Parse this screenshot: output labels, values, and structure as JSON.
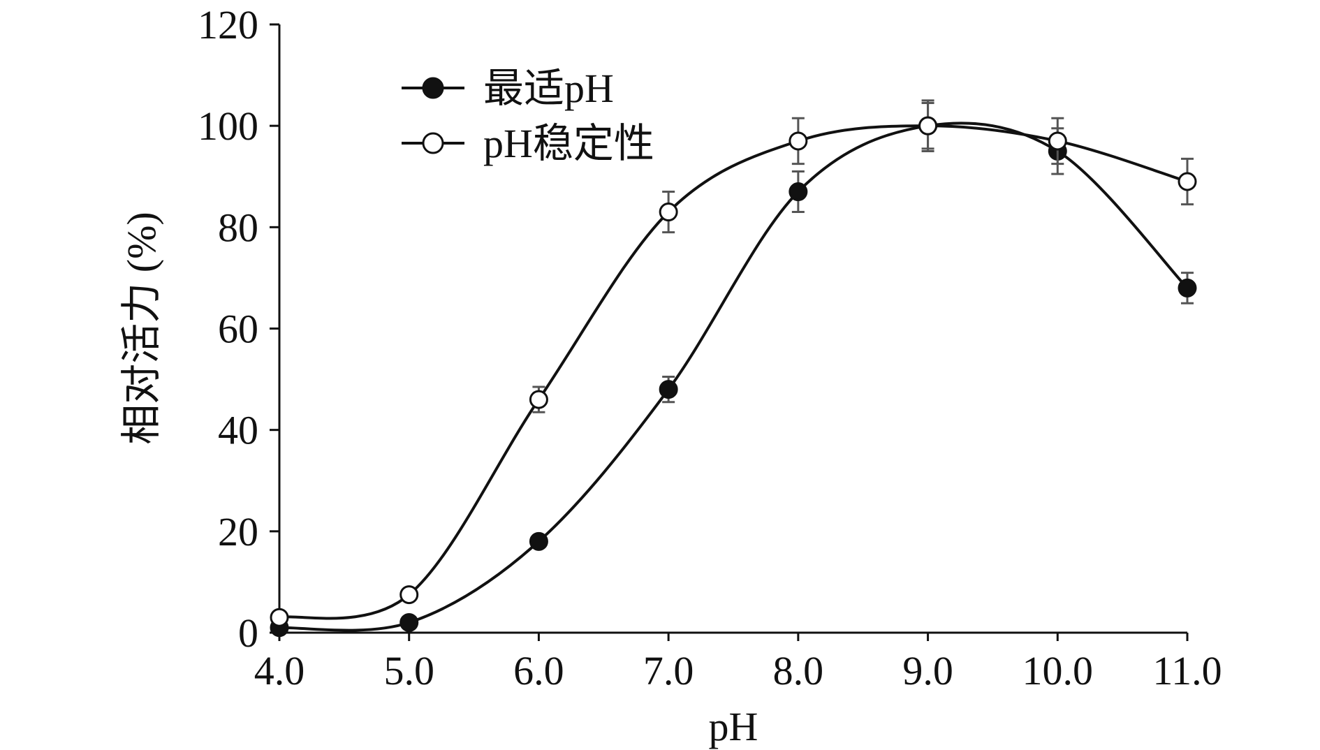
{
  "chart_data": {
    "type": "line",
    "title": "",
    "xlabel": "pH",
    "ylabel": "相对活力 (%)",
    "x": [
      4.0,
      5.0,
      6.0,
      7.0,
      8.0,
      9.0,
      10.0,
      11.0
    ],
    "x_tick_labels": [
      "4.0",
      "5.0",
      "6.0",
      "7.0",
      "8.0",
      "9.0",
      "10.0",
      "11.0"
    ],
    "xlim": [
      4.0,
      11.0
    ],
    "ylim": [
      0,
      120
    ],
    "y_ticks": [
      0,
      20,
      40,
      60,
      80,
      100,
      120
    ],
    "y_tick_labels": [
      "0",
      "20",
      "40",
      "60",
      "80",
      "100",
      "120"
    ],
    "grid": false,
    "legend_position": "top-left",
    "series": [
      {
        "name": "最适pH",
        "marker": "filled-circle",
        "color": "#111111",
        "values": [
          1,
          2,
          18,
          48,
          87,
          100,
          95,
          68
        ],
        "error": [
          0.5,
          0.8,
          1.2,
          2.5,
          4,
          5,
          4.5,
          3
        ]
      },
      {
        "name": "pH稳定性",
        "marker": "open-circle",
        "color": "#111111",
        "values": [
          3,
          7.5,
          46,
          83,
          97,
          100,
          97,
          89
        ],
        "error": [
          0.5,
          0.8,
          2.5,
          4,
          4.5,
          4.5,
          4.5,
          4.5
        ]
      }
    ]
  }
}
